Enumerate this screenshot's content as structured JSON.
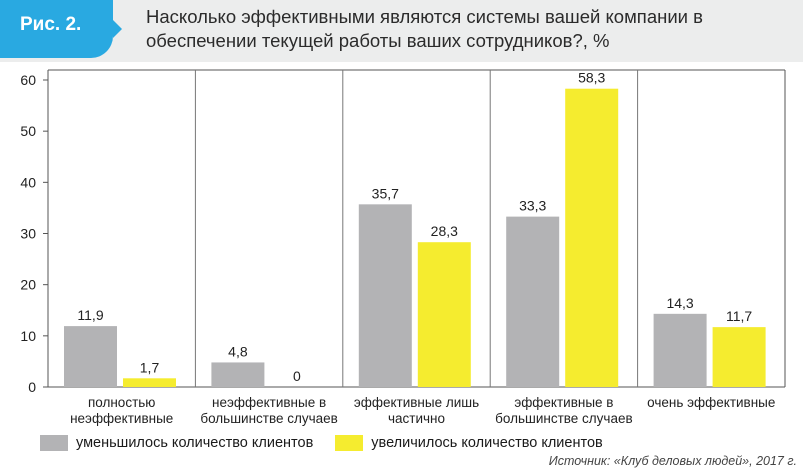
{
  "header": {
    "badge": "Рис. 2.",
    "title": "Насколько эффективными являются системы вашей компании в обеспечении текущей работы ваших сотрудников?, %"
  },
  "chart_data": {
    "type": "bar",
    "categories": [
      [
        "полностью",
        "неэффективные"
      ],
      [
        "неэффективные в",
        "большинстве случаев"
      ],
      [
        "эффективные лишь",
        "частично"
      ],
      [
        "эффективные в",
        "большинстве случаев"
      ],
      [
        "очень эффективные"
      ]
    ],
    "series": [
      {
        "name": "уменьшилось количество клиентов",
        "color": "#b3b3b5",
        "values": [
          11.9,
          4.8,
          35.7,
          33.3,
          14.3
        ],
        "labels": [
          "11,9",
          "4,8",
          "35,7",
          "33,3",
          "14,3"
        ]
      },
      {
        "name": "увеличилось количество клиентов",
        "color": "#f5ec2f",
        "values": [
          1.7,
          0,
          28.3,
          58.3,
          11.7
        ],
        "labels": [
          "1,7",
          "0",
          "28,3",
          "58,3",
          "11,7"
        ]
      }
    ],
    "ylim": [
      0,
      60
    ],
    "yticks": [
      0,
      10,
      20,
      30,
      40,
      50,
      60
    ],
    "grid": "vertical separators between categories"
  },
  "source": "Источник: «Клуб деловых людей», 2017 г."
}
